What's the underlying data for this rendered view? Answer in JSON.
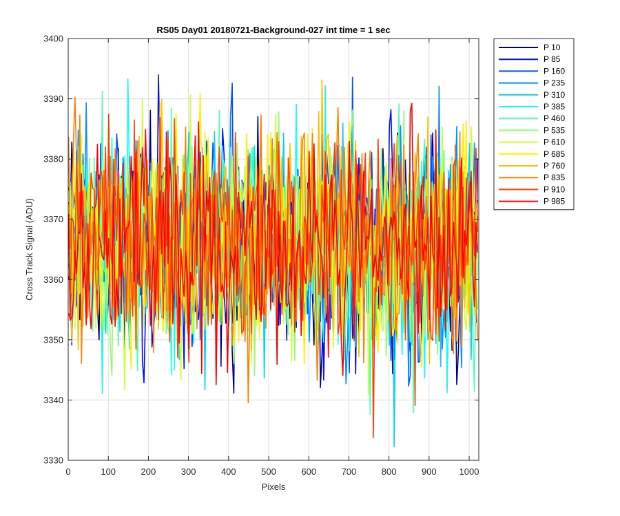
{
  "chart_data": {
    "type": "line",
    "title": "RS05 Day01 20180721-Background-027 int time = 1 sec",
    "xlabel": "Pixels",
    "ylabel": "Cross Track Signal (ADU)",
    "xlim": [
      0,
      1024
    ],
    "ylim": [
      3330,
      3400
    ],
    "xticks": [
      0,
      100,
      200,
      300,
      400,
      500,
      600,
      700,
      800,
      900,
      1000
    ],
    "yticks": [
      3330,
      3340,
      3350,
      3360,
      3370,
      3380,
      3390,
      3400
    ],
    "grid": true,
    "legend_position": "outside-top-right",
    "noise_model": {
      "x_start": 1,
      "x_end": 1024,
      "x_step": 4,
      "mean": 3366,
      "std_dev": 9,
      "y_min_observed": 3331,
      "y_max_observed": 3400
    },
    "series": [
      {
        "name": "P 10",
        "color": "#00008F"
      },
      {
        "name": "P 85",
        "color": "#0010FF"
      },
      {
        "name": "P 160",
        "color": "#0050FF"
      },
      {
        "name": "P 235",
        "color": "#0090FF"
      },
      {
        "name": "P 310",
        "color": "#00CFFF"
      },
      {
        "name": "P 385",
        "color": "#10FFEF"
      },
      {
        "name": "P 460",
        "color": "#50FFAF"
      },
      {
        "name": "P 535",
        "color": "#90FF6F"
      },
      {
        "name": "P 610",
        "color": "#CFFF30"
      },
      {
        "name": "P 685",
        "color": "#FFEF00"
      },
      {
        "name": "P 760",
        "color": "#FFBF00"
      },
      {
        "name": "P 835",
        "color": "#FF8000"
      },
      {
        "name": "P 910",
        "color": "#FF4000"
      },
      {
        "name": "P 985",
        "color": "#FF0000"
      }
    ]
  }
}
